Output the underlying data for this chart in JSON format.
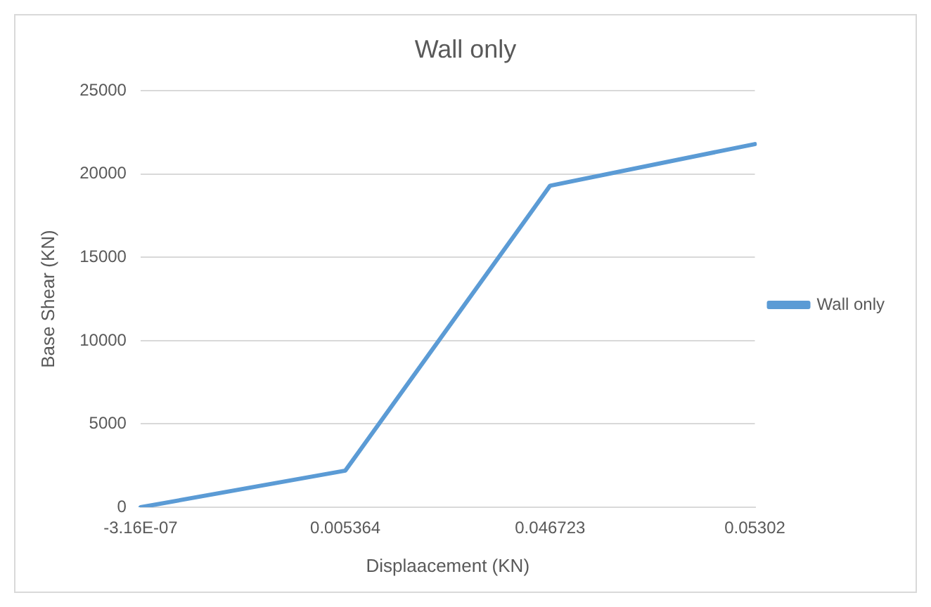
{
  "chart_data": {
    "type": "line",
    "title": "Wall only",
    "xlabel": "Displaacement (KN)",
    "ylabel": "Base Shear (KN)",
    "categories": [
      "-3.16E-07",
      "0.005364",
      "0.046723",
      "0.05302"
    ],
    "series": [
      {
        "name": "Wall only",
        "color": "#5b9bd5",
        "values": [
          0,
          2200,
          19300,
          21800
        ]
      }
    ],
    "ylim": [
      0,
      25000
    ],
    "yticks": [
      0,
      5000,
      10000,
      15000,
      20000,
      25000
    ],
    "grid": "y",
    "legend": "right",
    "marker": "none"
  }
}
